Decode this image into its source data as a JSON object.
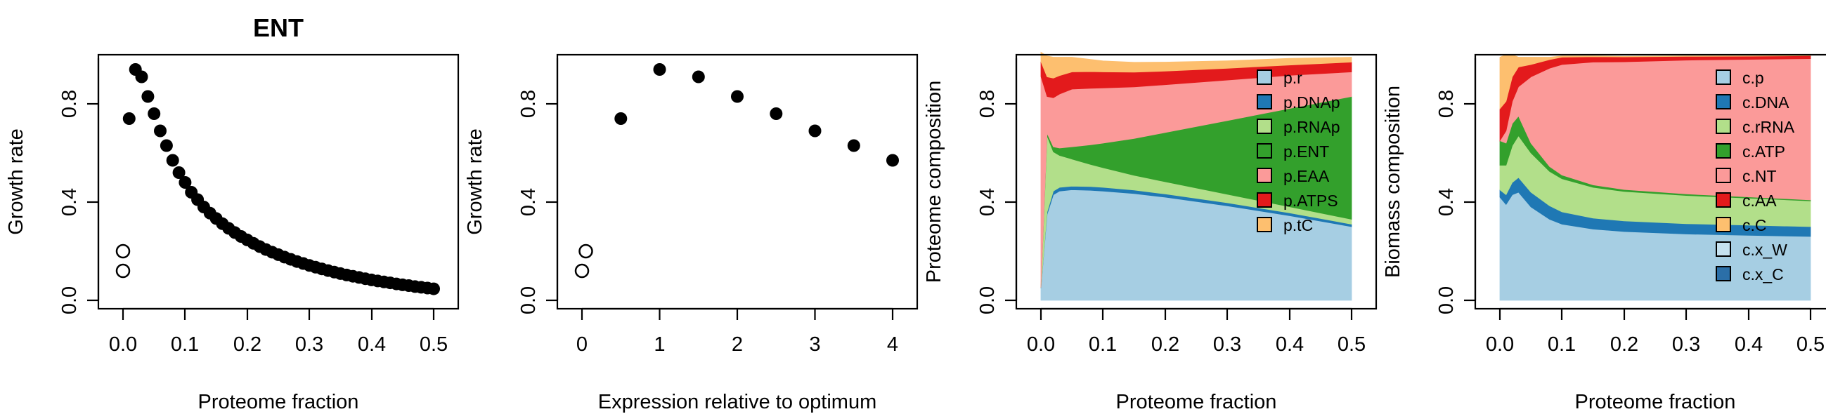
{
  "chart_data": [
    {
      "type": "scatter",
      "title": "ENT",
      "xlabel": "Proteome fraction",
      "ylabel": "Growth rate",
      "xlim": [
        0,
        0.5
      ],
      "ylim": [
        0,
        1.0
      ],
      "xticks": [
        "0.0",
        "0.1",
        "0.2",
        "0.3",
        "0.4",
        "0.5"
      ],
      "yticks": [
        "0.0",
        "0.4",
        "0.8"
      ],
      "series": [
        {
          "marker": "filled",
          "x": [
            0.01,
            0.02,
            0.03,
            0.04,
            0.05,
            0.06,
            0.07,
            0.08,
            0.09,
            0.1,
            0.11,
            0.12,
            0.13,
            0.14,
            0.15,
            0.16,
            0.17,
            0.18,
            0.19,
            0.2,
            0.21,
            0.22,
            0.23,
            0.24,
            0.25,
            0.26,
            0.27,
            0.28,
            0.29,
            0.3,
            0.31,
            0.32,
            0.33,
            0.34,
            0.35,
            0.36,
            0.37,
            0.38,
            0.39,
            0.4,
            0.41,
            0.42,
            0.43,
            0.44,
            0.45,
            0.46,
            0.47,
            0.48,
            0.49,
            0.5
          ],
          "y": [
            0.74,
            0.94,
            0.91,
            0.83,
            0.76,
            0.69,
            0.63,
            0.57,
            0.52,
            0.48,
            0.44,
            0.41,
            0.38,
            0.355,
            0.333,
            0.312,
            0.293,
            0.276,
            0.26,
            0.246,
            0.232,
            0.219,
            0.207,
            0.196,
            0.186,
            0.176,
            0.167,
            0.158,
            0.15,
            0.142,
            0.135,
            0.128,
            0.121,
            0.115,
            0.109,
            0.103,
            0.098,
            0.093,
            0.088,
            0.083,
            0.079,
            0.075,
            0.071,
            0.067,
            0.063,
            0.06,
            0.056,
            0.053,
            0.05,
            0.047
          ]
        },
        {
          "marker": "open",
          "x": [
            0.0,
            0.0
          ],
          "y": [
            0.12,
            0.2
          ]
        }
      ]
    },
    {
      "type": "scatter",
      "title": "",
      "xlabel": "Expression relative to optimum",
      "ylabel": "Growth rate",
      "xlim": [
        0,
        4
      ],
      "ylim": [
        0,
        1.0
      ],
      "xticks": [
        "0",
        "1",
        "2",
        "3",
        "4"
      ],
      "yticks": [
        "0.0",
        "0.4",
        "0.8"
      ],
      "series": [
        {
          "marker": "filled",
          "x": [
            0.5,
            1.0,
            1.5,
            2.0,
            2.5,
            3.0,
            3.5,
            4.0
          ],
          "y": [
            0.74,
            0.94,
            0.91,
            0.83,
            0.76,
            0.69,
            0.63,
            0.57
          ]
        },
        {
          "marker": "open",
          "x": [
            0.0,
            0.05
          ],
          "y": [
            0.12,
            0.2
          ]
        }
      ]
    },
    {
      "type": "area",
      "title": "",
      "xlabel": "Proteome fraction",
      "ylabel": "Proteome composition",
      "xlim": [
        0,
        0.5
      ],
      "ylim": [
        0,
        1.0
      ],
      "xticks": [
        "0.0",
        "0.1",
        "0.2",
        "0.3",
        "0.4",
        "0.5"
      ],
      "yticks": [
        "0.0",
        "0.4",
        "0.8"
      ],
      "x": [
        0.0,
        0.01,
        0.02,
        0.03,
        0.05,
        0.08,
        0.1,
        0.15,
        0.2,
        0.3,
        0.4,
        0.5
      ],
      "series": [
        {
          "name": "p.r",
          "color": "#a6cee3",
          "values": [
            0.05,
            0.35,
            0.43,
            0.445,
            0.45,
            0.448,
            0.445,
            0.435,
            0.42,
            0.385,
            0.345,
            0.3
          ]
        },
        {
          "name": "p.DNAp",
          "color": "#1f78b4",
          "values": [
            0.002,
            0.01,
            0.015,
            0.015,
            0.015,
            0.015,
            0.015,
            0.014,
            0.013,
            0.012,
            0.011,
            0.01
          ]
        },
        {
          "name": "p.RNAp",
          "color": "#b2df8a",
          "values": [
            0.0,
            0.31,
            0.16,
            0.13,
            0.11,
            0.09,
            0.08,
            0.06,
            0.05,
            0.035,
            0.025,
            0.02
          ]
        },
        {
          "name": "p.ENT",
          "color": "#33a02c",
          "values": [
            0.0,
            0.01,
            0.02,
            0.03,
            0.05,
            0.08,
            0.1,
            0.15,
            0.2,
            0.3,
            0.4,
            0.5
          ]
        },
        {
          "name": "p.EAA",
          "color": "#fb9a99",
          "values": [
            0.86,
            0.15,
            0.2,
            0.22,
            0.235,
            0.23,
            0.225,
            0.21,
            0.195,
            0.165,
            0.135,
            0.1
          ]
        },
        {
          "name": "p.ATPS",
          "color": "#e31a1c",
          "values": [
            0.06,
            0.08,
            0.08,
            0.075,
            0.07,
            0.068,
            0.065,
            0.06,
            0.055,
            0.048,
            0.042,
            0.04
          ]
        },
        {
          "name": "p.tC",
          "color": "#fdbf6f",
          "values": [
            0.038,
            0.085,
            0.085,
            0.075,
            0.06,
            0.05,
            0.045,
            0.04,
            0.037,
            0.03,
            0.027,
            0.02
          ]
        }
      ]
    },
    {
      "type": "area",
      "title": "",
      "xlabel": "Proteome fraction",
      "ylabel": "Biomass composition",
      "xlim": [
        0,
        0.5
      ],
      "ylim": [
        0,
        1.0
      ],
      "xticks": [
        "0.0",
        "0.1",
        "0.2",
        "0.3",
        "0.4",
        "0.5"
      ],
      "yticks": [
        "0.0",
        "0.4",
        "0.8"
      ],
      "x": [
        0.0,
        0.01,
        0.02,
        0.03,
        0.05,
        0.08,
        0.1,
        0.15,
        0.2,
        0.3,
        0.4,
        0.5
      ],
      "series": [
        {
          "name": "c.p",
          "color": "#a6cee3",
          "values": [
            0.42,
            0.39,
            0.43,
            0.44,
            0.38,
            0.33,
            0.31,
            0.29,
            0.28,
            0.27,
            0.265,
            0.26
          ]
        },
        {
          "name": "c.DNA",
          "color": "#1f78b4",
          "values": [
            0.03,
            0.04,
            0.05,
            0.06,
            0.06,
            0.055,
            0.05,
            0.045,
            0.043,
            0.042,
            0.041,
            0.04
          ]
        },
        {
          "name": "c.rRNA",
          "color": "#b2df8a",
          "values": [
            0.1,
            0.12,
            0.15,
            0.17,
            0.16,
            0.14,
            0.135,
            0.125,
            0.12,
            0.115,
            0.11,
            0.105
          ]
        },
        {
          "name": "c.ATP",
          "color": "#33a02c",
          "values": [
            0.1,
            0.09,
            0.09,
            0.08,
            0.04,
            0.02,
            0.015,
            0.01,
            0.008,
            0.006,
            0.005,
            0.004
          ]
        },
        {
          "name": "c.NT",
          "color": "#fb9a99",
          "values": [
            0.0,
            0.05,
            0.09,
            0.12,
            0.27,
            0.4,
            0.45,
            0.5,
            0.52,
            0.545,
            0.56,
            0.575
          ]
        },
        {
          "name": "c.AA",
          "color": "#e31a1c",
          "values": [
            0.13,
            0.12,
            0.1,
            0.08,
            0.05,
            0.035,
            0.03,
            0.022,
            0.02,
            0.015,
            0.013,
            0.012
          ]
        },
        {
          "name": "c.C",
          "color": "#fdbf6f",
          "values": [
            0.21,
            0.19,
            0.09,
            0.04,
            0.03,
            0.01,
            0.005,
            0.003,
            0.002,
            0.002,
            0.001,
            0.001
          ]
        },
        {
          "name": "c.x_W",
          "color": "#c6e2f0",
          "values": [
            0,
            0,
            0,
            0,
            0,
            0,
            0,
            0,
            0,
            0,
            0,
            0
          ]
        },
        {
          "name": "c.x_C",
          "color": "#2b6fa8",
          "values": [
            0,
            0,
            0,
            0,
            0,
            0,
            0,
            0,
            0,
            0,
            0,
            0
          ]
        }
      ]
    }
  ]
}
